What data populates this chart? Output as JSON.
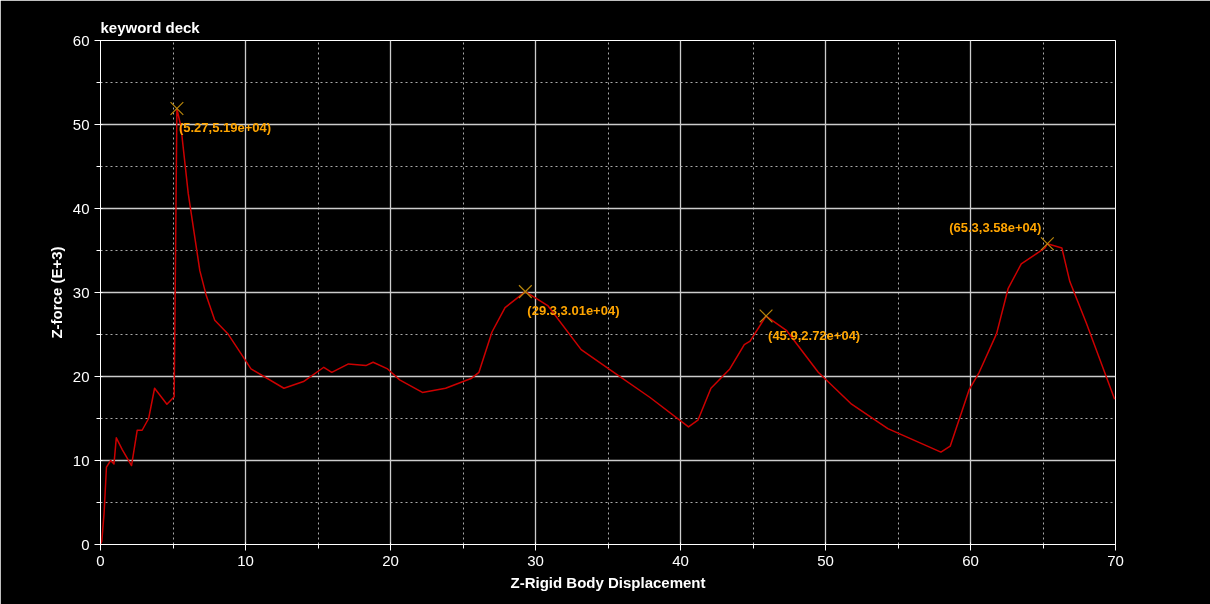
{
  "chart_data": {
    "type": "line",
    "title": "keyword deck",
    "xlabel": "Z-Rigid Body Displacement",
    "ylabel": "Z-force (E+3)",
    "x": [
      0,
      0.09,
      0.25,
      0.41,
      0.7,
      0.93,
      1.09,
      1.5,
      2.14,
      2.53,
      2.87,
      3.32,
      3.73,
      4.58,
      5.08,
      5.14,
      5.26,
      5.27,
      5.55,
      6.05,
      6.85,
      7.3,
      7.88,
      8.78,
      10.38,
      12.65,
      14.0,
      15.4,
      15.95,
      17.1,
      18.3,
      18.8,
      19.8,
      20.63,
      22.2,
      23.8,
      25.6,
      26.1,
      27.0,
      27.9,
      29.3,
      30.87,
      33.15,
      35.4,
      37.9,
      40.55,
      41.2,
      42.1,
      43.4,
      44.4,
      44.8,
      45.9,
      47.3,
      49.5,
      51.8,
      54.3,
      57.96,
      58.6,
      59.9,
      60.6,
      61.8,
      62.6,
      63.5,
      65.14,
      65.3,
      66.3,
      66.85,
      68.0,
      69.94
    ],
    "series": [
      {
        "color": "#cc0000",
        "values": [
          0,
          0.4,
          3.8,
          9.2,
          10,
          9.6,
          12.7,
          11.3,
          9.4,
          13.6,
          13.6,
          15.0,
          18.6,
          16.7,
          17.6,
          28,
          50.2,
          51.9,
          49.7,
          41.8,
          32.6,
          29.6,
          26.7,
          25.1,
          20.9,
          18.6,
          19.4,
          21.1,
          20.5,
          21.5,
          21.3,
          21.7,
          20.9,
          19.6,
          18.1,
          18.6,
          19.8,
          20.5,
          25.3,
          28.2,
          30.1,
          28.4,
          23.2,
          20.5,
          17.5,
          14.0,
          14.8,
          18.6,
          20.9,
          23.8,
          24.2,
          27.2,
          25.5,
          20.5,
          16.7,
          13.8,
          11.0,
          11.7,
          18.4,
          20.5,
          25.1,
          30.5,
          33.4,
          35.3,
          35.8,
          35.3,
          31.3,
          26.3,
          17.3
        ]
      }
    ],
    "annotations": [
      {
        "text": "(5.27,5.19e+04)",
        "x": 5.27,
        "y": 51.9
      },
      {
        "text": "(29.3,3.01e+04)",
        "x": 29.3,
        "y": 30.1
      },
      {
        "text": "(45.9,2.72e+04)",
        "x": 45.9,
        "y": 27.2
      },
      {
        "text": "(65.3,3.58e+04)",
        "x": 65.3,
        "y": 35.8
      }
    ],
    "xlim": [
      0,
      70
    ],
    "ylim": [
      0,
      60
    ],
    "xticks": [
      0,
      10,
      20,
      30,
      40,
      50,
      60,
      70
    ],
    "yticks": [
      0,
      10,
      20,
      30,
      40,
      50,
      60
    ],
    "grid": true,
    "marker": "none",
    "line_style": "solid"
  }
}
